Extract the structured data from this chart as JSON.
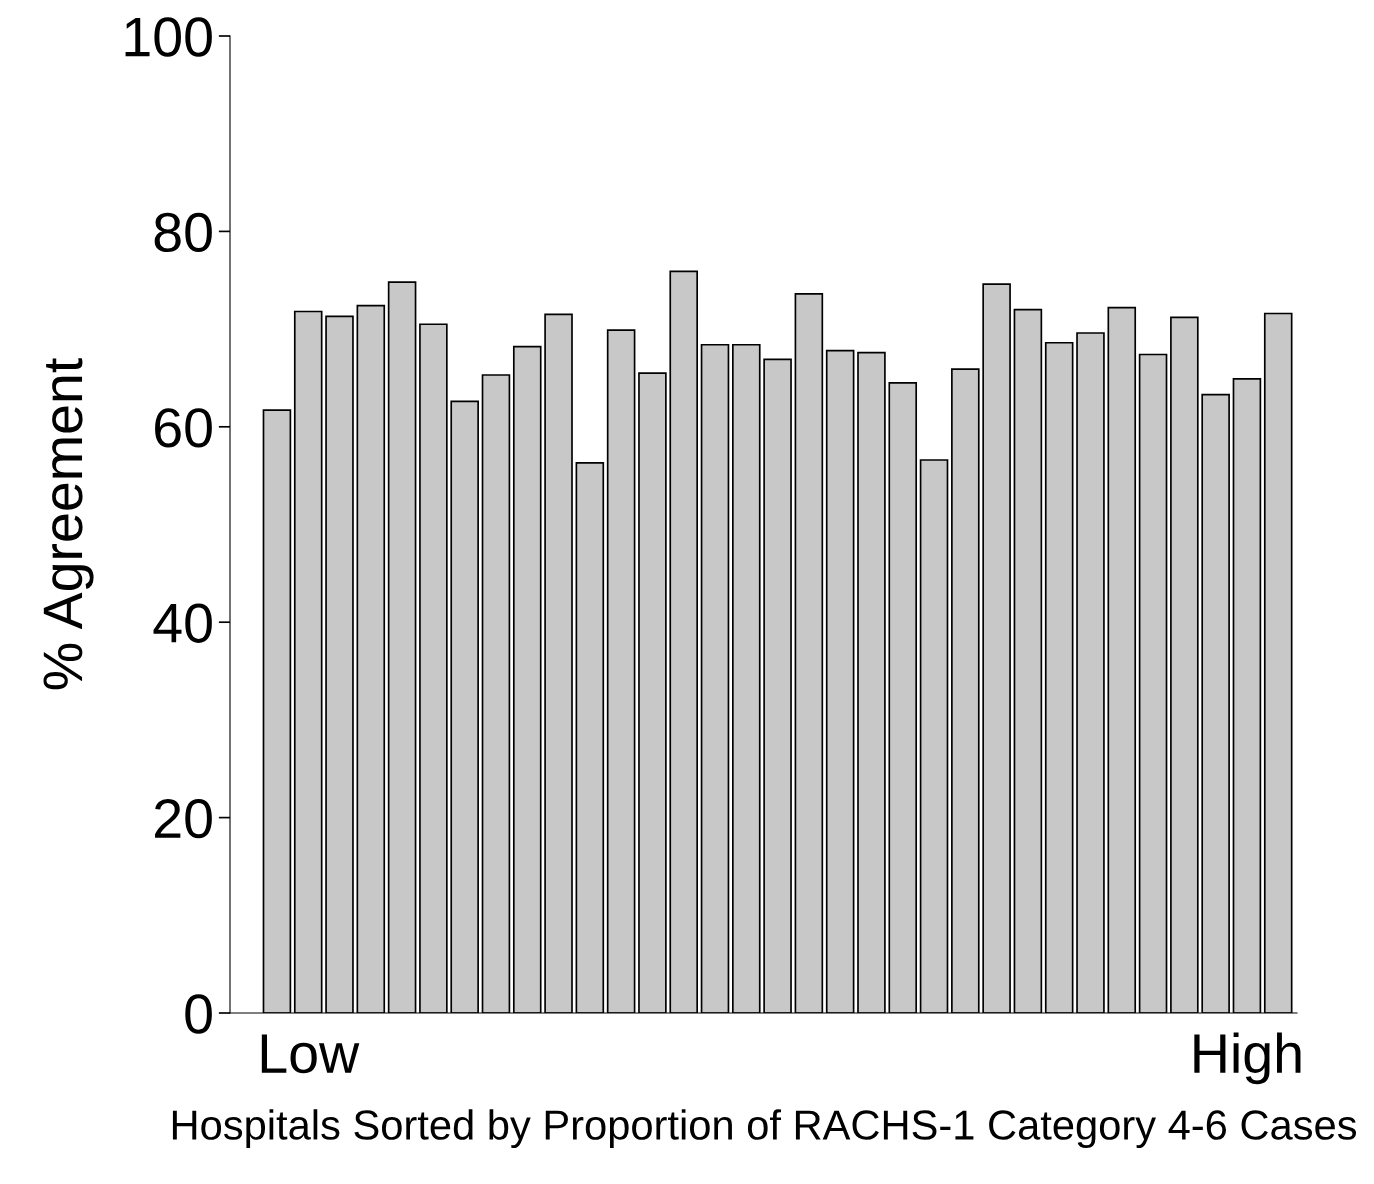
{
  "chart_data": {
    "type": "bar",
    "xlabel": "Hospitals Sorted by Proportion of RACHS-1 Category 4-6 Cases",
    "ylabel": "% Agreement",
    "categories": [
      null,
      "Low",
      null,
      null,
      null,
      null,
      null,
      null,
      null,
      null,
      null,
      null,
      null,
      null,
      null,
      null,
      null,
      null,
      null,
      null,
      null,
      null,
      null,
      null,
      null,
      null,
      null,
      null,
      null,
      null,
      null,
      "High",
      null
    ],
    "values": [
      61.7,
      71.8,
      71.3,
      72.4,
      74.8,
      70.5,
      62.6,
      65.3,
      68.2,
      71.5,
      56.3,
      69.9,
      65.5,
      75.9,
      68.4,
      68.4,
      66.9,
      73.6,
      67.8,
      67.6,
      64.5,
      56.6,
      65.9,
      74.6,
      72.0,
      68.6,
      69.6,
      72.2,
      67.4,
      71.2,
      63.3,
      64.9,
      71.6
    ],
    "color": "#c8c8c8",
    "ylim": [
      0,
      100
    ],
    "yticks": [
      0,
      20,
      40,
      60,
      80,
      100
    ],
    "grid": false,
    "legend": false
  }
}
